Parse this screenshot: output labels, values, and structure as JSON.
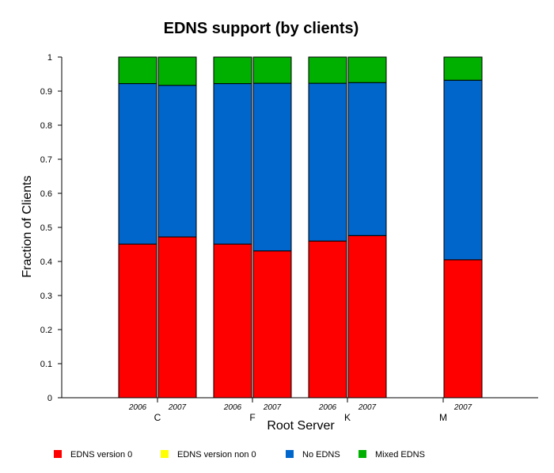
{
  "chart_data": {
    "type": "bar",
    "stacked": true,
    "title": "EDNS support (by clients)",
    "xlabel": "Root Server",
    "ylabel": "Fraction of Clients",
    "ylim": [
      0,
      1
    ],
    "yticks": [
      "0",
      "0.1",
      "0.2",
      "0.3",
      "0.4",
      "0.5",
      "0.6",
      "0.7",
      "0.8",
      "0.9",
      "1"
    ],
    "servers": [
      "C",
      "F",
      "K",
      "M"
    ],
    "bars": [
      {
        "server": "C",
        "year": "2006"
      },
      {
        "server": "C",
        "year": "2007"
      },
      {
        "server": "F",
        "year": "2006"
      },
      {
        "server": "F",
        "year": "2007"
      },
      {
        "server": "K",
        "year": "2006"
      },
      {
        "server": "K",
        "year": "2007"
      },
      {
        "server": "M",
        "year": "2007"
      }
    ],
    "series": [
      {
        "name": "EDNS version 0",
        "color": "#ff0000",
        "values": [
          0.451,
          0.472,
          0.451,
          0.431,
          0.46,
          0.476,
          0.405
        ]
      },
      {
        "name": "EDNS version non 0",
        "color": "#ffff00",
        "values": [
          0,
          0,
          0,
          0,
          0,
          0,
          0
        ]
      },
      {
        "name": "No EDNS",
        "color": "#0066cc",
        "values": [
          0.471,
          0.445,
          0.471,
          0.492,
          0.463,
          0.449,
          0.527
        ]
      },
      {
        "name": "Mixed EDNS",
        "color": "#00b000",
        "values": [
          0.078,
          0.083,
          0.078,
          0.077,
          0.077,
          0.075,
          0.068
        ]
      }
    ],
    "legend_position": "bottom",
    "grid": false
  }
}
